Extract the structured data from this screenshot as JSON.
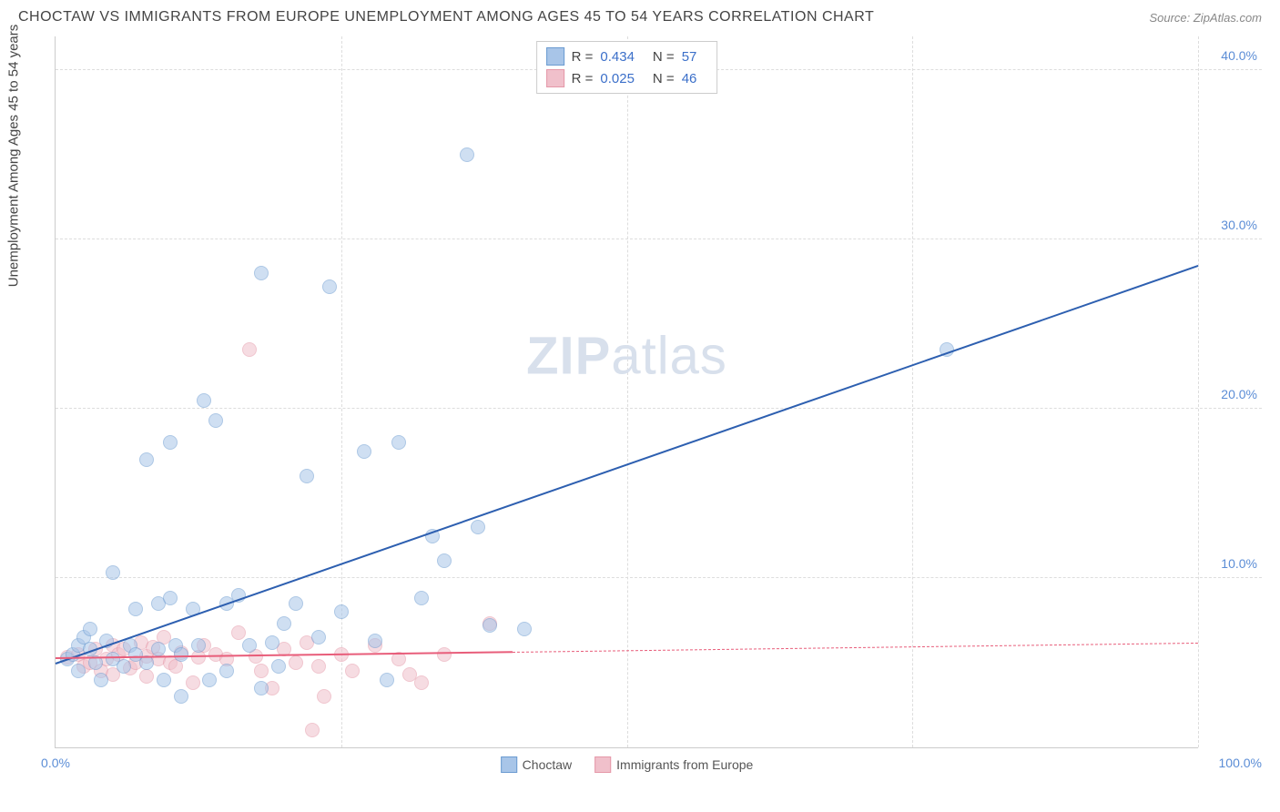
{
  "header": {
    "title": "CHOCTAW VS IMMIGRANTS FROM EUROPE UNEMPLOYMENT AMONG AGES 45 TO 54 YEARS CORRELATION CHART",
    "source": "Source: ZipAtlas.com"
  },
  "chart": {
    "type": "scatter",
    "y_axis_label": "Unemployment Among Ages 45 to 54 years",
    "xlim": [
      0,
      100
    ],
    "ylim": [
      0,
      42
    ],
    "x_ticks": [
      {
        "v": 0,
        "l": "0.0%"
      },
      {
        "v": 100,
        "l": "100.0%"
      }
    ],
    "x_grid_positions": [
      25,
      50,
      75,
      100
    ],
    "y_ticks": [
      {
        "v": 10,
        "l": "10.0%"
      },
      {
        "v": 20,
        "l": "20.0%"
      },
      {
        "v": 30,
        "l": "30.0%"
      },
      {
        "v": 40,
        "l": "40.0%"
      }
    ],
    "grid_color": "#dddddd",
    "axis_color": "#cccccc",
    "background_color": "#ffffff",
    "watermark_text_1": "ZIP",
    "watermark_text_2": "atlas",
    "watermark_color": "#d8e0ec",
    "series": [
      {
        "name": "Choctaw",
        "fill_color": "#a8c5e8",
        "stroke_color": "#6b9bd1",
        "line_color": "#2d5fb0",
        "fill_opacity": 0.55,
        "marker_size": 16,
        "R": "0.434",
        "N": "57",
        "regression": {
          "x1": 0,
          "y1": 5.0,
          "x2": 100,
          "y2": 28.5,
          "solid_until_x": 100
        },
        "points": [
          [
            1,
            5.2
          ],
          [
            1.5,
            5.5
          ],
          [
            2,
            6
          ],
          [
            2,
            4.5
          ],
          [
            2.5,
            6.5
          ],
          [
            3,
            5.8
          ],
          [
            3,
            7
          ],
          [
            3.5,
            5
          ],
          [
            4,
            4
          ],
          [
            4.5,
            6.3
          ],
          [
            5,
            10.3
          ],
          [
            5,
            5.2
          ],
          [
            6,
            4.8
          ],
          [
            6.5,
            6
          ],
          [
            7,
            8.2
          ],
          [
            7,
            5.5
          ],
          [
            8,
            5
          ],
          [
            8,
            17
          ],
          [
            9,
            8.5
          ],
          [
            9,
            5.8
          ],
          [
            9.5,
            4
          ],
          [
            10,
            8.8
          ],
          [
            10,
            18
          ],
          [
            10.5,
            6
          ],
          [
            11,
            3
          ],
          [
            11,
            5.5
          ],
          [
            12,
            8.2
          ],
          [
            12.5,
            6
          ],
          [
            13,
            20.5
          ],
          [
            13.5,
            4
          ],
          [
            14,
            19.3
          ],
          [
            15,
            8.5
          ],
          [
            15,
            4.5
          ],
          [
            16,
            9
          ],
          [
            17,
            6
          ],
          [
            18,
            28
          ],
          [
            18,
            3.5
          ],
          [
            19,
            6.2
          ],
          [
            19.5,
            4.8
          ],
          [
            20,
            7.3
          ],
          [
            21,
            8.5
          ],
          [
            22,
            16
          ],
          [
            23,
            6.5
          ],
          [
            24,
            27.2
          ],
          [
            25,
            8
          ],
          [
            27,
            17.5
          ],
          [
            28,
            6.3
          ],
          [
            29,
            4
          ],
          [
            30,
            18
          ],
          [
            32,
            8.8
          ],
          [
            33,
            12.5
          ],
          [
            34,
            11
          ],
          [
            36,
            35
          ],
          [
            37,
            13
          ],
          [
            38,
            7.2
          ],
          [
            78,
            23.5
          ],
          [
            41,
            7
          ]
        ]
      },
      {
        "name": "Immigrants from Europe",
        "fill_color": "#f0c0cb",
        "stroke_color": "#e598a8",
        "line_color": "#e85d7a",
        "fill_opacity": 0.55,
        "marker_size": 16,
        "R": "0.025",
        "N": "46",
        "regression": {
          "x1": 0,
          "y1": 5.3,
          "x2": 100,
          "y2": 6.2,
          "solid_until_x": 40
        },
        "points": [
          [
            1,
            5.3
          ],
          [
            2,
            5.5
          ],
          [
            2.5,
            4.8
          ],
          [
            3,
            5
          ],
          [
            3.5,
            5.8
          ],
          [
            4,
            4.5
          ],
          [
            4.5,
            5.2
          ],
          [
            5,
            6
          ],
          [
            5,
            4.3
          ],
          [
            5.5,
            5.5
          ],
          [
            6,
            5.8
          ],
          [
            6.5,
            4.7
          ],
          [
            7,
            5
          ],
          [
            7.5,
            6.2
          ],
          [
            8,
            5.4
          ],
          [
            8,
            4.2
          ],
          [
            8.5,
            5.9
          ],
          [
            9,
            5.2
          ],
          [
            9.5,
            6.5
          ],
          [
            10,
            5
          ],
          [
            10.5,
            4.8
          ],
          [
            11,
            5.6
          ],
          [
            12,
            3.8
          ],
          [
            12.5,
            5.3
          ],
          [
            13,
            6
          ],
          [
            14,
            5.5
          ],
          [
            15,
            5.2
          ],
          [
            16,
            6.8
          ],
          [
            17,
            23.5
          ],
          [
            17.5,
            5.4
          ],
          [
            18,
            4.5
          ],
          [
            19,
            3.5
          ],
          [
            20,
            5.8
          ],
          [
            21,
            5
          ],
          [
            22,
            6.2
          ],
          [
            22.5,
            1
          ],
          [
            23,
            4.8
          ],
          [
            23.5,
            3
          ],
          [
            25,
            5.5
          ],
          [
            26,
            4.5
          ],
          [
            28,
            6
          ],
          [
            30,
            5.2
          ],
          [
            31,
            4.3
          ],
          [
            32,
            3.8
          ],
          [
            34,
            5.5
          ],
          [
            38,
            7.3
          ]
        ]
      }
    ],
    "legend_bottom": [
      {
        "label": "Choctaw",
        "fill": "#a8c5e8",
        "stroke": "#6b9bd1"
      },
      {
        "label": "Immigrants from Europe",
        "fill": "#f0c0cb",
        "stroke": "#e598a8"
      }
    ]
  }
}
